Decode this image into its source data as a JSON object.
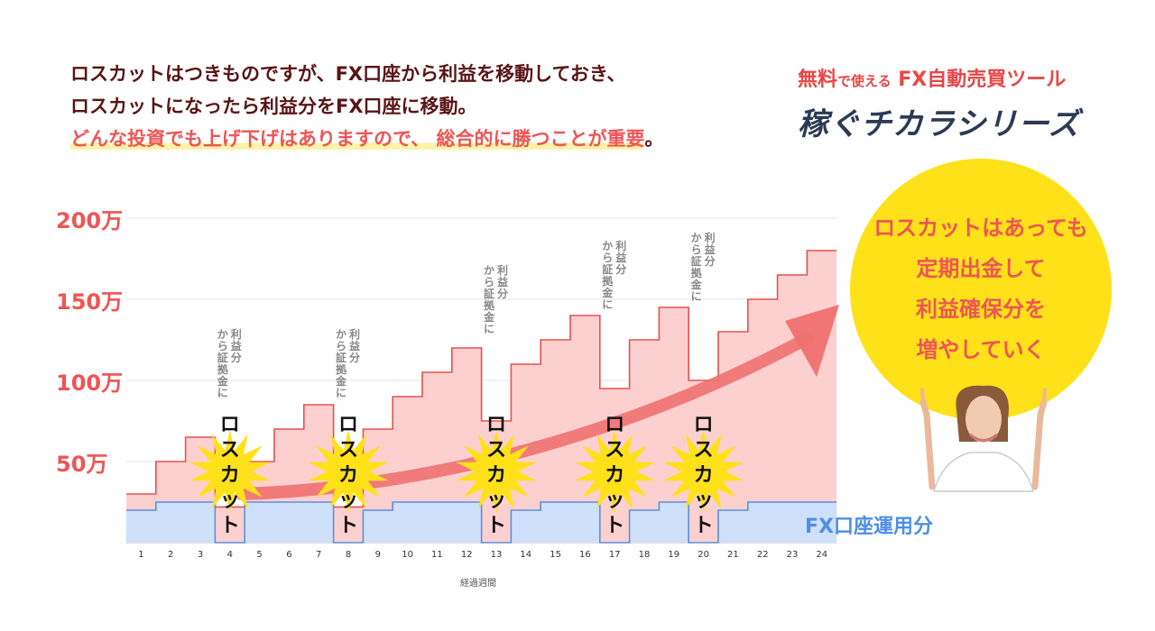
{
  "headline": {
    "line1": "ロスカットはつきものですが、FX口座から利益を移動しておき、",
    "line2": "ロスカットになったら利益分をFX口座に移動。",
    "line3_highlight": "どんな投資でも上げ下げはありますので、 総合的に勝つことが重要",
    "line3_end": "。"
  },
  "brand": {
    "sub_a": "無料",
    "sub_b": "で使える",
    "sub_c": "FX自動売買ツール",
    "main": "稼ぐチカラシリーズ"
  },
  "callout": {
    "line1": "ロスカットはあっても",
    "line2": "定期出金して",
    "line3": "利益確保分を",
    "line4": "増やしていく"
  },
  "fx_account_label": "FX口座運用分",
  "colors": {
    "total_fill": "#fdd0d0",
    "total_line": "#e85050",
    "fx_fill": "#cfe0fb",
    "fx_line": "#5b8fdb",
    "burst": "#ffe11a",
    "arrow": "#f07070"
  },
  "chart_data": {
    "type": "area",
    "x": [
      1,
      2,
      3,
      4,
      5,
      6,
      7,
      8,
      9,
      10,
      11,
      12,
      13,
      14,
      15,
      16,
      17,
      18,
      19,
      20,
      21,
      22,
      23,
      24
    ],
    "xlabel": "経過週間",
    "yticks": [
      "200万",
      "150万",
      "100万",
      "50万"
    ],
    "ytick_values": [
      200,
      150,
      100,
      50
    ],
    "ylim": [
      0,
      200
    ],
    "series": [
      {
        "values": [
          30,
          50,
          65,
          22,
          50,
          70,
          85,
          22,
          70,
          90,
          105,
          120,
          75,
          110,
          125,
          140,
          95,
          125,
          145,
          100,
          130,
          150,
          165,
          180
        ]
      },
      {
        "name": "FX口座運用分",
        "values": [
          20,
          25,
          25,
          0,
          25,
          25,
          25,
          0,
          20,
          25,
          25,
          25,
          0,
          20,
          25,
          25,
          0,
          20,
          25,
          0,
          20,
          25,
          25,
          25
        ]
      }
    ],
    "annotations": [
      {
        "week": 4,
        "burst": "ロスカット",
        "note": "利益分から証拠金に"
      },
      {
        "week": 8,
        "burst": "ロスカット",
        "note": "利益分から証拠金に"
      },
      {
        "week": 13,
        "burst": "ロスカット",
        "note": "利益分から証拠金に"
      },
      {
        "week": 17,
        "burst": "ロスカット",
        "note": "利益分から証拠金に"
      },
      {
        "week": 20,
        "burst": "ロスカット",
        "note": "利益分から証拠金に"
      }
    ]
  }
}
